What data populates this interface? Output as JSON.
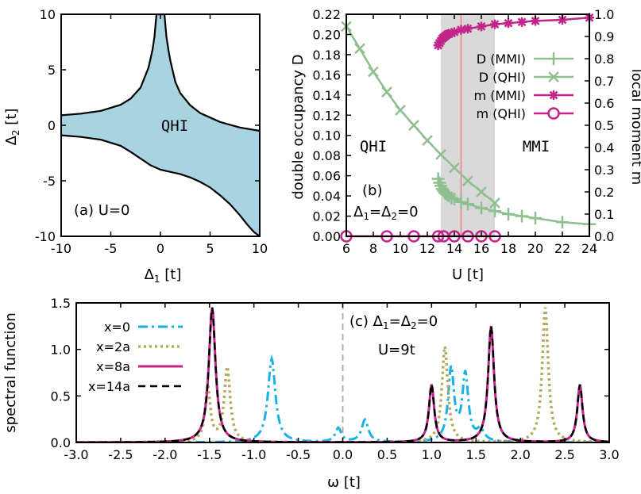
{
  "chart_data": [
    {
      "panel": "a",
      "type": "area",
      "xlabel": "Δ1 [t]",
      "ylabel": "Δ2 [t]",
      "xlim": [
        -10,
        10
      ],
      "ylim": [
        -10,
        10
      ],
      "xticks": [
        "-10",
        "-5",
        "0",
        "5",
        "10"
      ],
      "yticks": [
        "-10",
        "-5",
        "0",
        "5",
        "10"
      ],
      "fill_color": "#a8d3e0",
      "region_label": "QHI",
      "panel_label": "(a) U=0",
      "upper_boundary": {
        "x": [
          -10,
          -8,
          -6,
          -4,
          -3,
          -2,
          -1.2,
          -0.8,
          -0.6,
          -0.4,
          0,
          0.4,
          0.6,
          0.8,
          1.0,
          1.5,
          2,
          3,
          4,
          6,
          8,
          10
        ],
        "y": [
          0.9,
          1.05,
          1.3,
          1.85,
          2.4,
          3.4,
          5.2,
          6.8,
          8.0,
          10,
          10,
          10,
          8.0,
          6.8,
          5.8,
          3.9,
          2.9,
          1.8,
          1.1,
          0.3,
          -0.2,
          -0.5
        ]
      },
      "lower_boundary": {
        "x": [
          -10,
          -8,
          -6,
          -4,
          -3,
          -2,
          -1,
          0,
          1,
          2,
          3,
          4,
          5,
          6,
          7,
          8,
          8.8,
          9.4,
          10
        ],
        "y": [
          -0.9,
          -1.05,
          -1.3,
          -1.85,
          -2.4,
          -3.0,
          -3.6,
          -4.0,
          -4.2,
          -4.4,
          -4.7,
          -5.1,
          -5.6,
          -6.3,
          -7.1,
          -8.1,
          -9.0,
          -9.6,
          -10
        ]
      }
    },
    {
      "panel": "b",
      "type": "scatter",
      "xlabel": "U [t]",
      "ylabel": "double occupancy D",
      "y2label": "local moment m",
      "xlim": [
        6,
        24
      ],
      "ylim": [
        0,
        0.22
      ],
      "y2lim": [
        0,
        1.0
      ],
      "xticks": [
        "6",
        "8",
        "10",
        "12",
        "14",
        "16",
        "18",
        "20",
        "22",
        "24"
      ],
      "yticks": [
        "0.00",
        "0.02",
        "0.04",
        "0.06",
        "0.08",
        "0.10",
        "0.12",
        "0.14",
        "0.16",
        "0.18",
        "0.20",
        "0.22"
      ],
      "y2ticks": [
        "0.0",
        "0.1",
        "0.2",
        "0.3",
        "0.4",
        "0.5",
        "0.6",
        "0.7",
        "0.8",
        "0.9",
        "1.0"
      ],
      "shaded_region": [
        13,
        17
      ],
      "vertical_line": 14.5,
      "region_labels": [
        "QHI",
        "MMI"
      ],
      "panel_label": "(b)",
      "panel_sublabel": "Δ1=Δ2=0",
      "series": [
        {
          "name": "D (MMI)",
          "axis": "left",
          "marker": "plus",
          "color": "#8fbf8f",
          "x": [
            12.8,
            12.9,
            13.0,
            13.1,
            13.2,
            13.3,
            13.4,
            13.5,
            13.6,
            13.8,
            14.0,
            14.5,
            15,
            16,
            17,
            18,
            19,
            20,
            22,
            24
          ],
          "y": [
            0.057,
            0.053,
            0.05,
            0.047,
            0.045,
            0.043,
            0.042,
            0.041,
            0.04,
            0.038,
            0.037,
            0.034,
            0.032,
            0.028,
            0.025,
            0.022,
            0.02,
            0.018,
            0.014,
            0.012
          ]
        },
        {
          "name": "D (QHI)",
          "axis": "left",
          "marker": "cross",
          "color": "#8fbf8f",
          "x": [
            6,
            7,
            8,
            9,
            10,
            11,
            12,
            13,
            14,
            15,
            16,
            17
          ],
          "y": [
            0.208,
            0.186,
            0.163,
            0.143,
            0.125,
            0.11,
            0.095,
            0.081,
            0.068,
            0.055,
            0.044,
            0.033
          ]
        },
        {
          "name": "m (MMI)",
          "axis": "right",
          "marker": "star",
          "color": "#c2248a",
          "x": [
            12.8,
            12.9,
            13.0,
            13.1,
            13.2,
            13.3,
            13.4,
            13.5,
            13.6,
            13.8,
            14.0,
            14.5,
            15,
            16,
            17,
            18,
            19,
            20,
            22,
            24
          ],
          "y": [
            0.86,
            0.87,
            0.88,
            0.89,
            0.895,
            0.9,
            0.905,
            0.91,
            0.912,
            0.915,
            0.92,
            0.93,
            0.935,
            0.945,
            0.955,
            0.96,
            0.965,
            0.97,
            0.975,
            0.985
          ]
        },
        {
          "name": "m (QHI)",
          "axis": "right",
          "marker": "circle",
          "color": "#c2248a",
          "x": [
            6,
            9,
            11,
            12.8,
            13.2,
            14,
            15,
            16,
            17
          ],
          "y": [
            0,
            0,
            0,
            0,
            0,
            0,
            0,
            0,
            0
          ]
        }
      ]
    },
    {
      "panel": "c",
      "type": "line",
      "xlabel": "ω [t]",
      "ylabel": "spectral function",
      "xlim": [
        -3.0,
        3.0
      ],
      "ylim": [
        0,
        1.5
      ],
      "xticks": [
        "-3.0",
        "-2.5",
        "-2.0",
        "-1.5",
        "-1.0",
        "-0.5",
        "0.0",
        "0.5",
        "1.0",
        "1.5",
        "2.0",
        "2.5",
        "3.0"
      ],
      "yticks": [
        "0.0",
        "0.5",
        "1.0",
        "1.5"
      ],
      "vertical_line": 0,
      "panel_label": "(c) Δ1=Δ2=0",
      "panel_sublabel": "U=9t",
      "series": [
        {
          "name": "x=0",
          "color": "#1ab2e6",
          "dash": "dashdot",
          "width": 3,
          "peaks": [
            [
              -0.8,
              0.9,
              0.05
            ],
            [
              -0.05,
              0.15,
              0.04
            ],
            [
              0.25,
              0.24,
              0.045
            ],
            [
              1.22,
              0.78,
              0.04
            ],
            [
              1.38,
              0.72,
              0.04
            ],
            [
              1.55,
              0.12,
              0.05
            ]
          ]
        },
        {
          "name": "x=2a",
          "color": "#b5aa5c",
          "dash": "dot",
          "width": 3.5,
          "peaks": [
            [
              -1.52,
              0.6,
              0.035
            ],
            [
              -1.3,
              0.8,
              0.04
            ],
            [
              1.15,
              1.03,
              0.04
            ],
            [
              2.28,
              1.45,
              0.04
            ]
          ]
        },
        {
          "name": "x=8a",
          "color": "#c2248a",
          "dash": "solid",
          "width": 3,
          "peaks": [
            [
              -1.47,
              1.45,
              0.045
            ],
            [
              1.0,
              0.62,
              0.035
            ],
            [
              1.67,
              1.25,
              0.04
            ],
            [
              2.67,
              0.62,
              0.035
            ]
          ]
        },
        {
          "name": "x=14a",
          "color": "#000000",
          "dash": "dash",
          "width": 2.5,
          "peaks": [
            [
              -1.47,
              1.45,
              0.045
            ],
            [
              1.0,
              0.62,
              0.035
            ],
            [
              1.67,
              1.25,
              0.04
            ],
            [
              2.67,
              0.62,
              0.035
            ]
          ]
        }
      ]
    }
  ]
}
